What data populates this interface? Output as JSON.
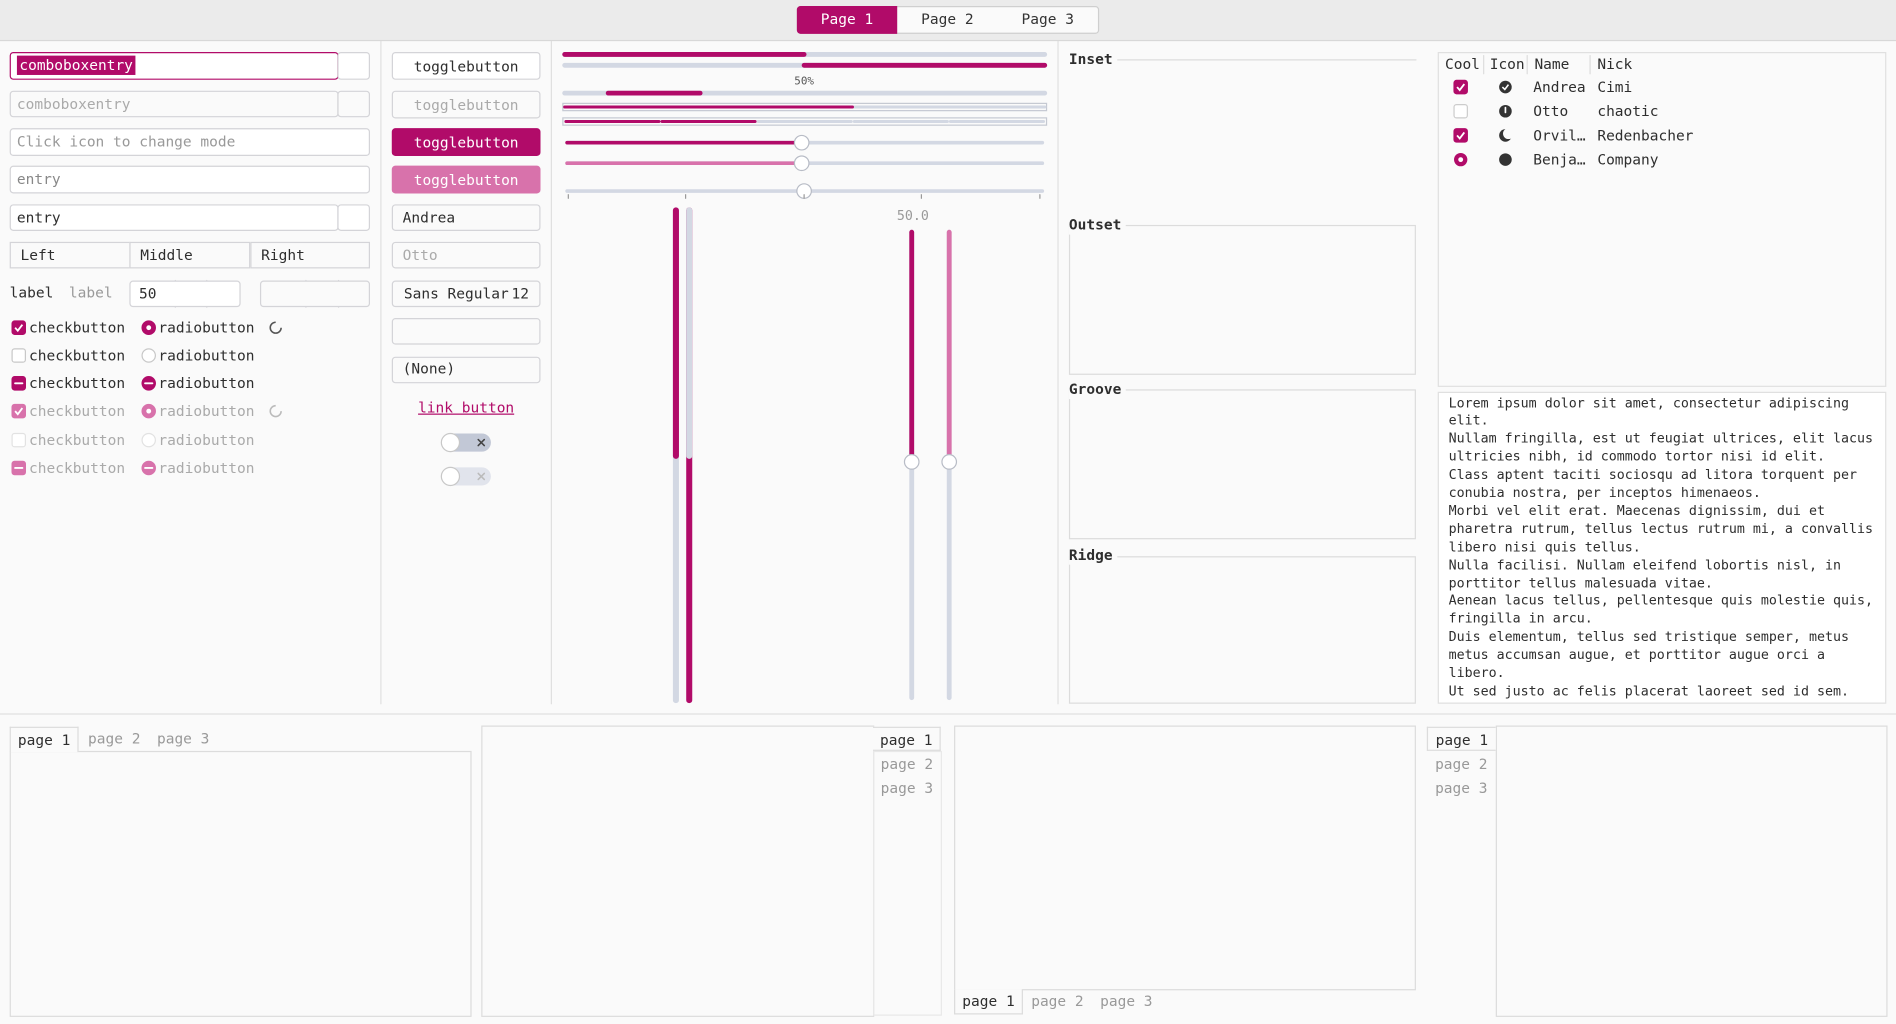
{
  "header": {
    "tabs": [
      "Page 1",
      "Page 2",
      "Page 3"
    ]
  },
  "entries": {
    "combo": [
      "comboboxentry",
      "comboboxentry"
    ],
    "icon_entry": "Click icon to change mode",
    "entry": [
      "entry",
      "entry"
    ],
    "dropdowns": [
      "Left",
      "Middle",
      "Right"
    ],
    "labels": [
      "label",
      "label"
    ],
    "spin": "50"
  },
  "checks": [
    "checkbutton",
    "checkbutton",
    "checkbutton",
    "checkbutton",
    "checkbutton",
    "checkbutton"
  ],
  "radios": [
    "radiobutton",
    "radiobutton",
    "radiobutton",
    "radiobutton",
    "radiobutton",
    "radiobutton"
  ],
  "buttons": {
    "toggles": [
      "togglebutton",
      "togglebutton",
      "togglebutton",
      "togglebutton"
    ],
    "combos": [
      "Andrea",
      "Otto"
    ],
    "font": "Sans Regular",
    "font_size": "12",
    "file": "(None)",
    "link": "link button"
  },
  "progress": {
    "label": "50%",
    "scale_value": "50.0"
  },
  "frames": [
    "Inset",
    "Outset",
    "Groove",
    "Ridge"
  ],
  "tree": {
    "columns": [
      "Cool",
      "Icon",
      "Name",
      "Nick"
    ],
    "rows": [
      [
        "Andrea",
        "Cimi"
      ],
      [
        "Otto",
        "chaotic"
      ],
      [
        "Orvil…",
        "Redenbacher"
      ],
      [
        "Benja…",
        "Company"
      ]
    ]
  },
  "text": [
    "Lorem ipsum dolor sit amet, consectetur adipiscing",
    "elit.",
    "Nullam fringilla, est ut feugiat ultrices, elit lacus",
    "ultricies nibh, id commodo tortor nisi id elit.",
    "Class aptent taciti sociosqu ad litora torquent per",
    "conubia nostra, per inceptos himenaeos.",
    "Morbi vel elit erat. Maecenas dignissim, dui et",
    "pharetra rutrum, tellus lectus rutrum mi, a convallis",
    "libero nisi quis tellus.",
    "Nulla facilisi. Nullam eleifend lobortis nisl, in",
    "porttitor tellus malesuada vitae.",
    "Aenean lacus tellus, pellentesque quis molestie quis,",
    "fringilla in arcu.",
    "Duis elementum, tellus sed tristique semper, metus",
    "metus accumsan augue, et porttitor augue orci a",
    "libero.",
    "Ut sed justo ac felis placerat laoreet sed id sem."
  ],
  "notebooks": [
    [
      "page 1",
      "page 2",
      "page 3"
    ],
    [
      "page 1",
      "page 2",
      "page 3"
    ],
    [
      "page 1",
      "page 2",
      "page 3"
    ],
    [
      "page 1",
      "page 2",
      "page 3"
    ]
  ]
}
